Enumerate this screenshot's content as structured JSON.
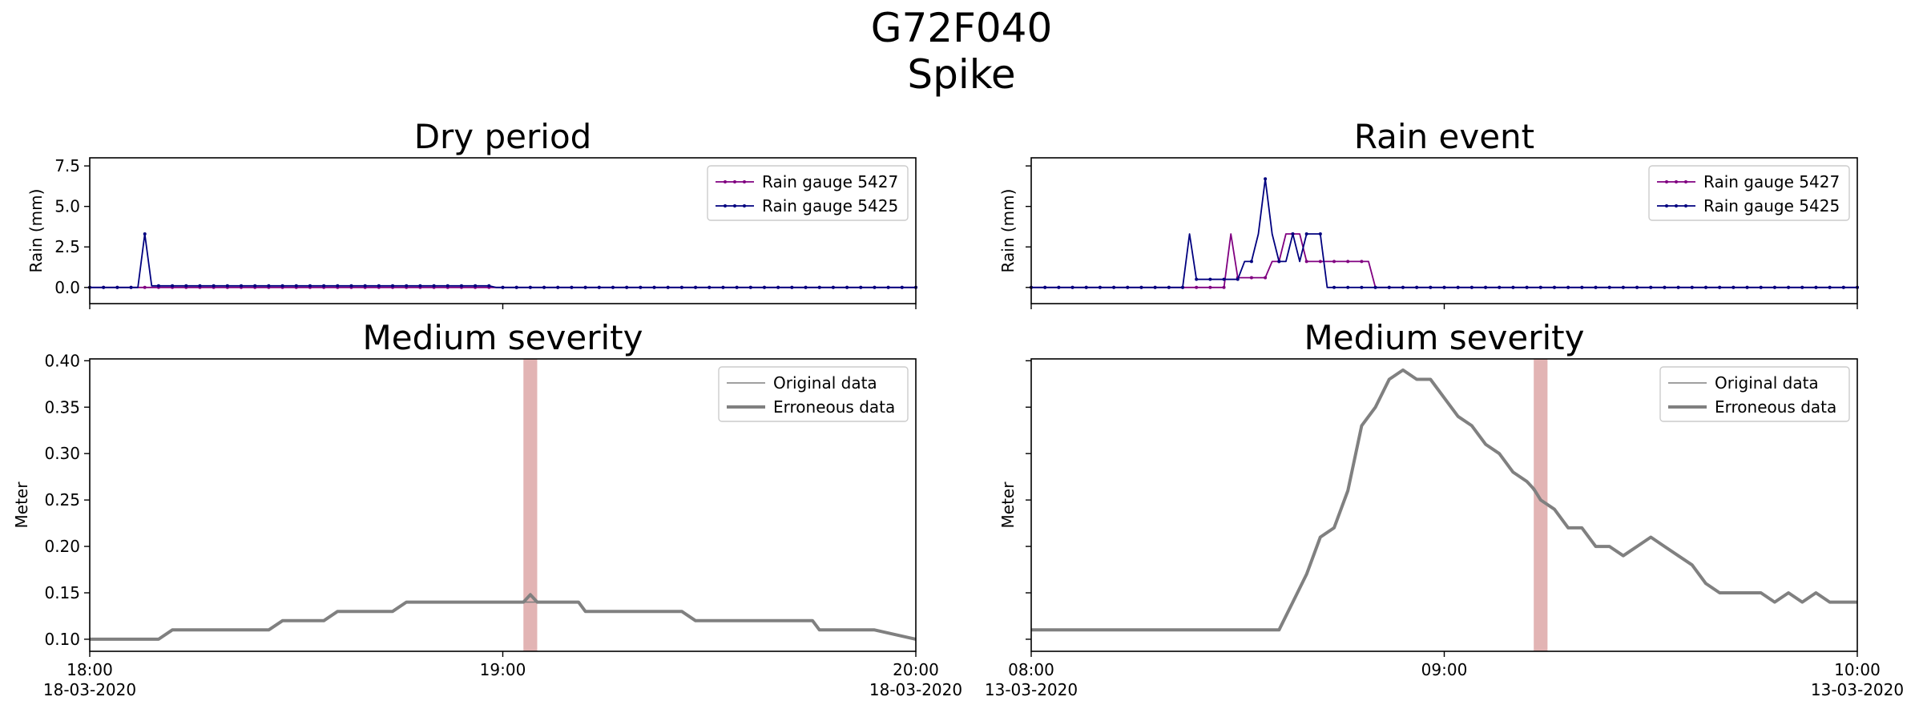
{
  "figure": {
    "title_line1": "G72F040",
    "title_line2": "Spike"
  },
  "colors": {
    "gauge_5427": "#800080",
    "gauge_5425": "#00007f",
    "level_line": "#808080",
    "spike_band": "#e2b4b4"
  },
  "chart_data": [
    {
      "type": "line",
      "title": "Dry period",
      "ylabel": "Rain (mm)",
      "ylim": [
        -1.0,
        8.0
      ],
      "yticks": [
        "0.0",
        "2.5",
        "5.0",
        "7.5"
      ],
      "x_range_minutes": [
        0,
        120
      ],
      "legend": "top-right",
      "series": [
        {
          "name": "Rain gauge 5427",
          "x": [
            0,
            9,
            10,
            58,
            59,
            120
          ],
          "values": [
            0,
            0,
            0,
            0,
            0,
            0
          ]
        },
        {
          "name": "Rain gauge 5425",
          "x": [
            0,
            7,
            8,
            9,
            58,
            59,
            120
          ],
          "values": [
            0,
            0,
            3.3,
            0.1,
            0.1,
            0,
            0
          ]
        }
      ]
    },
    {
      "type": "line",
      "title": "Rain event",
      "ylabel": "Rain (mm)",
      "ylim": [
        -1.0,
        8.0
      ],
      "x_range_minutes": [
        0,
        120
      ],
      "legend": "top-right",
      "series": [
        {
          "name": "Rain gauge 5427",
          "x": [
            0,
            28,
            29,
            30,
            34,
            35,
            36,
            37,
            38,
            39,
            40,
            41,
            42,
            49,
            50,
            120
          ],
          "values": [
            0,
            0,
            3.3,
            0.6,
            0.6,
            1.6,
            1.6,
            3.3,
            3.3,
            3.3,
            1.6,
            1.6,
            1.6,
            1.6,
            0,
            0
          ]
        },
        {
          "name": "Rain gauge 5425",
          "x": [
            0,
            22,
            23,
            24,
            30,
            31,
            32,
            33,
            34,
            35,
            36,
            37,
            38,
            39,
            40,
            41,
            42,
            43,
            120
          ],
          "values": [
            0,
            0,
            3.3,
            0.5,
            0.5,
            1.6,
            1.6,
            3.3,
            6.7,
            3.3,
            1.6,
            1.6,
            3.3,
            1.6,
            3.3,
            3.3,
            3.3,
            0,
            0
          ]
        }
      ]
    },
    {
      "type": "line",
      "title": "Medium severity",
      "ylabel": "Meter",
      "ylim": [
        0.087,
        0.402
      ],
      "yticks": [
        "0.10",
        "0.15",
        "0.20",
        "0.25",
        "0.30",
        "0.35",
        "0.40"
      ],
      "xticks": [
        {
          "line1": "18:00",
          "line2": "18-03-2020"
        },
        {
          "line1": "19:00",
          "line2": ""
        },
        {
          "line1": "20:00",
          "line2": "18-03-2020"
        }
      ],
      "legend": "top-right",
      "highlight_range_minutes": [
        63,
        65
      ],
      "series": [
        {
          "name": "Original data",
          "x": [
            0,
            10,
            12,
            26,
            28,
            34,
            36,
            44,
            46,
            58,
            60,
            64,
            66,
            71,
            72,
            86,
            88,
            100,
            102,
            105,
            106,
            112,
            114,
            120
          ],
          "values": [
            0.1,
            0.1,
            0.11,
            0.11,
            0.12,
            0.12,
            0.13,
            0.13,
            0.14,
            0.14,
            0.14,
            0.14,
            0.14,
            0.14,
            0.13,
            0.13,
            0.12,
            0.12,
            0.12,
            0.12,
            0.11,
            0.11,
            0.11,
            0.1
          ]
        },
        {
          "name": "Erroneous data",
          "x": [
            0,
            10,
            12,
            26,
            28,
            34,
            36,
            44,
            46,
            58,
            60,
            63,
            64,
            65,
            66,
            71,
            72,
            86,
            88,
            100,
            102,
            105,
            106,
            112,
            114,
            120
          ],
          "values": [
            0.1,
            0.1,
            0.11,
            0.11,
            0.12,
            0.12,
            0.13,
            0.13,
            0.14,
            0.14,
            0.14,
            0.14,
            0.148,
            0.14,
            0.14,
            0.14,
            0.13,
            0.13,
            0.12,
            0.12,
            0.12,
            0.12,
            0.11,
            0.11,
            0.11,
            0.1
          ]
        }
      ]
    },
    {
      "type": "line",
      "title": "Medium severity",
      "ylabel": "Meter",
      "ylim": [
        0.087,
        0.402
      ],
      "xticks": [
        {
          "line1": "08:00",
          "line2": "13-03-2020"
        },
        {
          "line1": "09:00",
          "line2": ""
        },
        {
          "line1": "10:00",
          "line2": "13-03-2020"
        }
      ],
      "legend": "top-right",
      "highlight_range_minutes": [
        73,
        75
      ],
      "series": [
        {
          "name": "Original data",
          "x": [
            0,
            36,
            38,
            40,
            42,
            44,
            46,
            48,
            50,
            52,
            54,
            56,
            58,
            60,
            62,
            64,
            66,
            68,
            70,
            72,
            74,
            76,
            78,
            80,
            82,
            84,
            86,
            88,
            90,
            92,
            94,
            96,
            98,
            100,
            102,
            104,
            106,
            108,
            110,
            112,
            114,
            116,
            118,
            120
          ],
          "values": [
            0.11,
            0.11,
            0.14,
            0.17,
            0.21,
            0.22,
            0.26,
            0.33,
            0.35,
            0.38,
            0.39,
            0.38,
            0.38,
            0.36,
            0.34,
            0.33,
            0.31,
            0.3,
            0.28,
            0.27,
            0.25,
            0.24,
            0.22,
            0.22,
            0.2,
            0.2,
            0.19,
            0.2,
            0.21,
            0.2,
            0.19,
            0.18,
            0.16,
            0.15,
            0.15,
            0.15,
            0.15,
            0.14,
            0.15,
            0.14,
            0.15,
            0.14,
            0.14,
            0.14
          ]
        },
        {
          "name": "Erroneous data",
          "x": [
            0,
            36,
            38,
            40,
            42,
            44,
            46,
            48,
            50,
            52,
            54,
            56,
            58,
            60,
            62,
            64,
            66,
            68,
            70,
            72,
            73,
            74,
            76,
            78,
            80,
            82,
            84,
            86,
            88,
            90,
            92,
            94,
            96,
            98,
            100,
            102,
            104,
            106,
            108,
            110,
            112,
            114,
            116,
            118,
            120
          ],
          "values": [
            0.11,
            0.11,
            0.14,
            0.17,
            0.21,
            0.22,
            0.26,
            0.33,
            0.35,
            0.38,
            0.39,
            0.38,
            0.38,
            0.36,
            0.34,
            0.33,
            0.31,
            0.3,
            0.28,
            0.27,
            0.262,
            0.25,
            0.24,
            0.22,
            0.22,
            0.2,
            0.2,
            0.19,
            0.2,
            0.21,
            0.2,
            0.19,
            0.18,
            0.16,
            0.15,
            0.15,
            0.15,
            0.15,
            0.14,
            0.15,
            0.14,
            0.15,
            0.14,
            0.14,
            0.14
          ]
        }
      ]
    }
  ]
}
